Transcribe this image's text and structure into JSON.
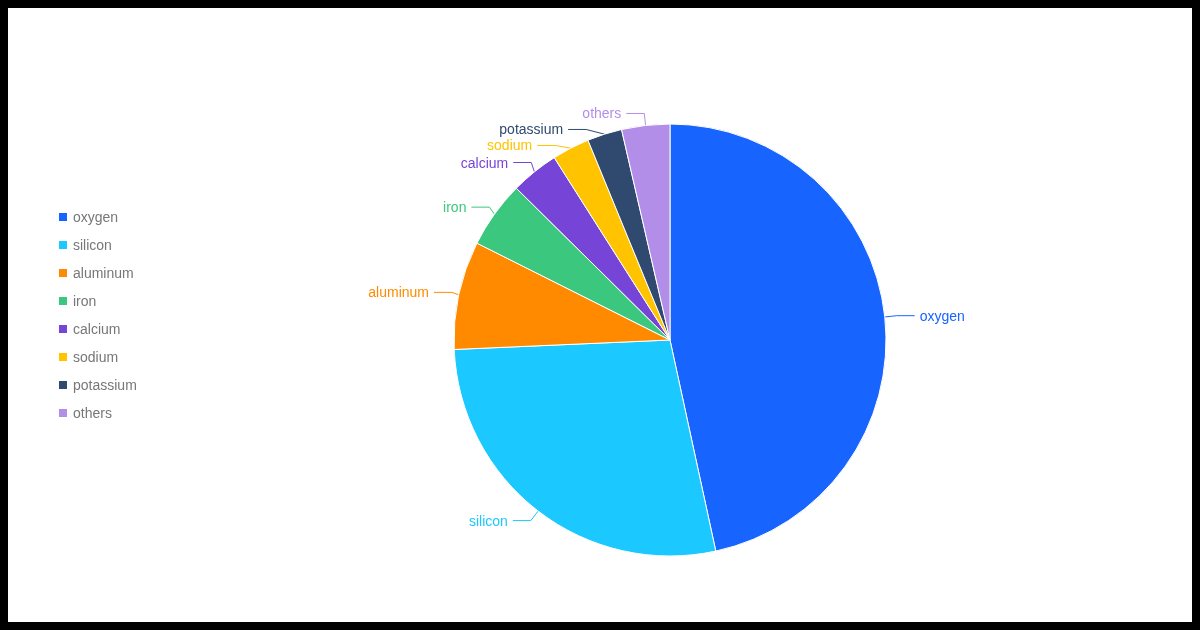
{
  "chart_data": {
    "type": "pie",
    "categories": [
      "oxygen",
      "silicon",
      "aluminum",
      "iron",
      "calcium",
      "sodium",
      "potassium",
      "others"
    ],
    "values": [
      46.6,
      27.7,
      8.1,
      5.0,
      3.6,
      2.8,
      2.6,
      3.6
    ],
    "colors": [
      "#1764ff",
      "#1bc8ff",
      "#ff8a00",
      "#3cc77e",
      "#7645d8",
      "#ffc300",
      "#2f4a6e",
      "#b38ee8"
    ],
    "legend": "left"
  }
}
